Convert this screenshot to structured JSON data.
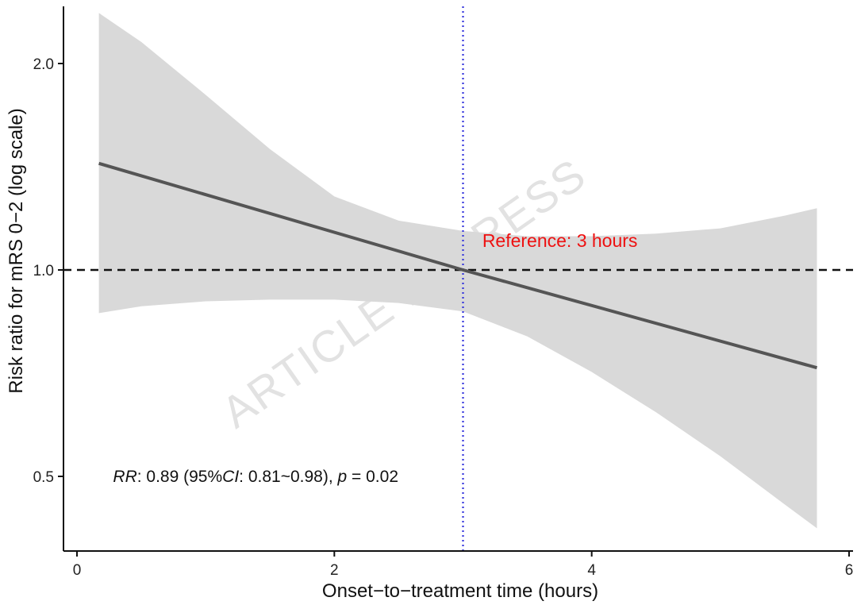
{
  "chart_data": {
    "type": "line",
    "xlabel": "Onset−to−treatment time (hours)",
    "ylabel": "Risk ratio for mRS 0−2 (log scale)",
    "xlim": [
      -0.1,
      6.0
    ],
    "ylim": [
      0.41,
      2.45
    ],
    "y_scale": "log",
    "x_ticks": [
      0,
      2,
      4,
      6
    ],
    "x_tick_labels": [
      "0",
      "2",
      "4",
      "6"
    ],
    "y_ticks": [
      0.5,
      1.0,
      2.0
    ],
    "y_tick_labels": [
      "0.5",
      "1.0",
      "2.0"
    ],
    "grid": false,
    "series": [
      {
        "x": [
          0.17,
          3.0,
          5.75
        ],
        "y": [
          1.43,
          1.0,
          0.72
        ],
        "color": "#555555"
      }
    ],
    "confidence_band": {
      "x": [
        0.17,
        0.5,
        1.0,
        1.5,
        2.0,
        2.5,
        3.0,
        3.5,
        4.0,
        4.5,
        5.0,
        5.5,
        5.75
      ],
      "lower": [
        0.865,
        0.885,
        0.9,
        0.905,
        0.905,
        0.895,
        0.87,
        0.8,
        0.71,
        0.62,
        0.535,
        0.455,
        0.42
      ],
      "upper": [
        2.37,
        2.15,
        1.8,
        1.5,
        1.28,
        1.18,
        1.14,
        1.12,
        1.12,
        1.13,
        1.15,
        1.2,
        1.23
      ],
      "color": "#d9d9d9"
    },
    "reference_lines": [
      {
        "orientation": "horizontal",
        "value": 1.0,
        "style": "dashed",
        "color": "#111111"
      },
      {
        "orientation": "vertical",
        "value": 3.0,
        "style": "dotted",
        "color": "#3333dd"
      }
    ],
    "annotations": [
      {
        "text": "Reference: 3 hours",
        "x": 3.15,
        "y": 1.08,
        "color": "#ee1111"
      }
    ],
    "stats_annotation": {
      "rr_label": "RR",
      "rr_text": ": 0.89 (95%",
      "ci_label": "CI",
      "ci_text": ": 0.81~0.98), ",
      "p_label": "p",
      "p_text": " = 0.02",
      "x": 0.28,
      "y": 0.5
    },
    "watermark": "ARTICLE IN PRESS"
  }
}
